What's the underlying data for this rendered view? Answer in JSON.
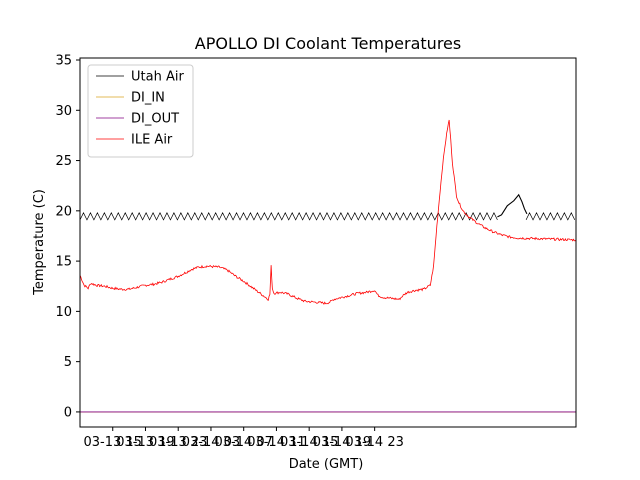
{
  "chart_data": {
    "type": "line",
    "title": "APOLLO DI Coolant Temperatures",
    "xlabel": "Date (GMT)",
    "ylabel": "Temperature (C)",
    "ylim": [
      -1.5,
      35.2
    ],
    "yticks": [
      0,
      5,
      10,
      15,
      20,
      25,
      30,
      35
    ],
    "xlim_hours": [
      11.0,
      71.6
    ],
    "xticks": [
      {
        "hour": 15,
        "label": "03-13 15"
      },
      {
        "hour": 19,
        "label": "03-13 19"
      },
      {
        "hour": 23,
        "label": "03-13 23"
      },
      {
        "hour": 27,
        "label": "03-14 03"
      },
      {
        "hour": 31,
        "label": "03-14 07"
      },
      {
        "hour": 35,
        "label": "03-14 11"
      },
      {
        "hour": 39,
        "label": "03-14 15"
      },
      {
        "hour": 43,
        "label": "03-14 19"
      },
      {
        "hour": 47,
        "label": "03-14 23"
      }
    ],
    "legend_position": "top-left",
    "series": [
      {
        "name": "Utah Air",
        "color": "#000000",
        "style": "sawtooth",
        "base_segments": [
          {
            "x": [
              11.0,
              62.0
            ],
            "low": 19.1,
            "high": 19.8,
            "period": 0.85
          },
          {
            "x": [
              65.5,
              71.6
            ],
            "low": 19.1,
            "high": 19.8,
            "period": 0.85
          }
        ],
        "points": [
          [
            62.0,
            19.4
          ],
          [
            62.5,
            19.6
          ],
          [
            63.2,
            20.5
          ],
          [
            64.0,
            21.0
          ],
          [
            64.6,
            21.6
          ],
          [
            65.0,
            20.9
          ],
          [
            65.3,
            20.2
          ],
          [
            65.6,
            19.7
          ]
        ]
      },
      {
        "name": "DI_IN",
        "color": "#DAA520",
        "points": [
          [
            11.0,
            0.0
          ],
          [
            71.6,
            0.0
          ]
        ]
      },
      {
        "name": "DI_OUT",
        "color": "#800080",
        "points": [
          [
            11.0,
            0.0
          ],
          [
            71.6,
            0.0
          ]
        ]
      },
      {
        "name": "ILE Air",
        "color": "#ff0000",
        "noise": 0.12,
        "points": [
          [
            11.0,
            13.6
          ],
          [
            11.5,
            12.6
          ],
          [
            12.0,
            12.3
          ],
          [
            12.3,
            12.8
          ],
          [
            13.0,
            12.6
          ],
          [
            14.0,
            12.5
          ],
          [
            15.0,
            12.3
          ],
          [
            16.0,
            12.2
          ],
          [
            17.0,
            12.2
          ],
          [
            18.0,
            12.4
          ],
          [
            19.0,
            12.6
          ],
          [
            20.0,
            12.7
          ],
          [
            21.0,
            12.9
          ],
          [
            22.0,
            13.2
          ],
          [
            23.0,
            13.5
          ],
          [
            24.0,
            13.9
          ],
          [
            24.7,
            14.2
          ],
          [
            25.5,
            14.4
          ],
          [
            26.5,
            14.5
          ],
          [
            28.0,
            14.4
          ],
          [
            29.0,
            14.1
          ],
          [
            30.0,
            13.5
          ],
          [
            31.0,
            13.0
          ],
          [
            32.0,
            12.4
          ],
          [
            33.0,
            11.8
          ],
          [
            33.5,
            11.5
          ],
          [
            34.0,
            11.2
          ],
          [
            34.2,
            11.7
          ],
          [
            34.35,
            14.5
          ],
          [
            34.5,
            12.3
          ],
          [
            34.7,
            11.8
          ],
          [
            35.5,
            11.9
          ],
          [
            36.5,
            11.7
          ],
          [
            37.5,
            11.3
          ],
          [
            38.5,
            11.0
          ],
          [
            40.0,
            10.9
          ],
          [
            41.0,
            10.8
          ],
          [
            41.5,
            10.9
          ],
          [
            42.0,
            11.2
          ],
          [
            43.0,
            11.4
          ],
          [
            44.0,
            11.6
          ],
          [
            45.0,
            11.8
          ],
          [
            46.0,
            11.9
          ],
          [
            47.0,
            12.1
          ],
          [
            47.4,
            11.6
          ],
          [
            48.0,
            11.4
          ],
          [
            49.0,
            11.3
          ],
          [
            50.0,
            11.2
          ],
          [
            50.5,
            11.6
          ],
          [
            51.0,
            11.9
          ],
          [
            52.0,
            12.1
          ],
          [
            53.0,
            12.2
          ],
          [
            53.8,
            12.6
          ],
          [
            54.2,
            14.5
          ],
          [
            54.6,
            18.5
          ],
          [
            55.0,
            22.0
          ],
          [
            55.3,
            24.5
          ],
          [
            55.6,
            26.5
          ],
          [
            55.9,
            28.2
          ],
          [
            56.1,
            29.0
          ],
          [
            56.3,
            27.0
          ],
          [
            56.5,
            24.8
          ],
          [
            56.8,
            22.8
          ],
          [
            57.0,
            21.5
          ],
          [
            57.3,
            20.8
          ],
          [
            57.8,
            20.0
          ],
          [
            58.5,
            19.4
          ],
          [
            59.5,
            18.8
          ],
          [
            60.5,
            18.3
          ],
          [
            61.5,
            17.9
          ],
          [
            62.5,
            17.6
          ],
          [
            63.5,
            17.4
          ],
          [
            64.5,
            17.3
          ],
          [
            71.6,
            17.1
          ]
        ]
      }
    ]
  }
}
